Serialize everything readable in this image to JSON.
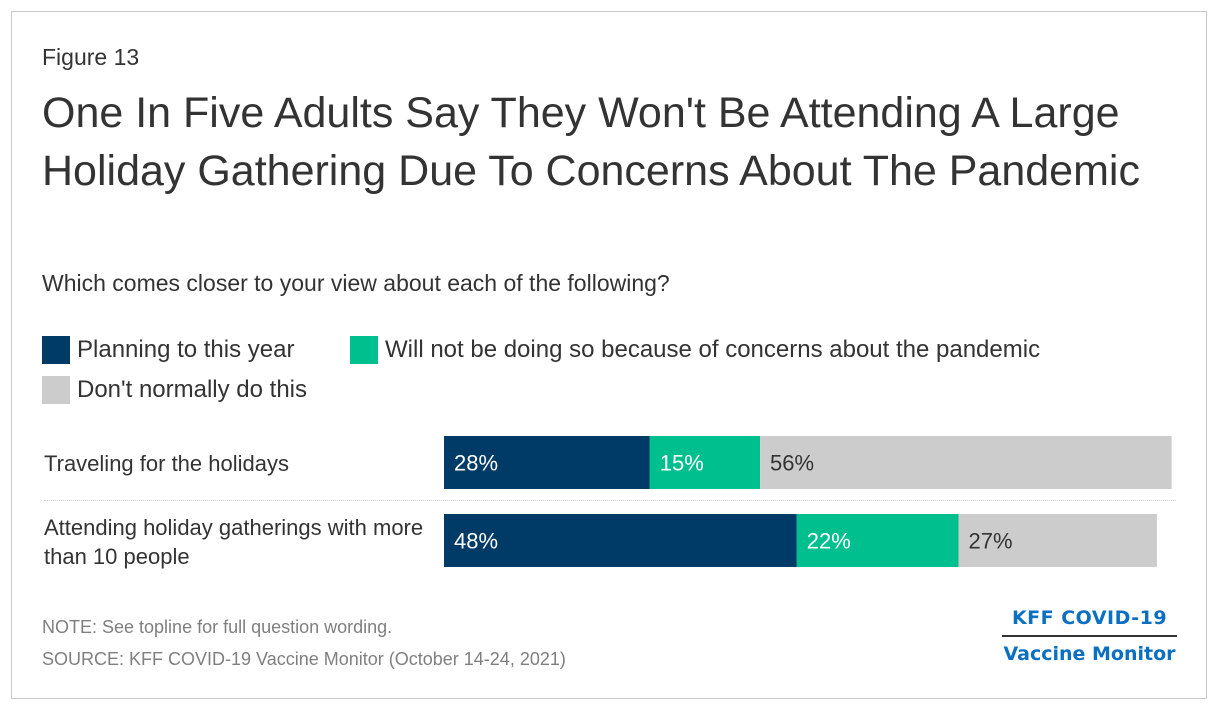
{
  "figure_label": "Figure 13",
  "title": "One In Five Adults Say They Won't Be Attending A Large Holiday Gathering Due To Concerns About The Pandemic",
  "subtitle": "Which comes closer to your view about each of the following?",
  "colors": {
    "planning": "#003a66",
    "will_not": "#00bf8f",
    "dont": "#cccccc"
  },
  "chart_data": {
    "type": "bar",
    "orientation": "horizontal",
    "stacked": true,
    "categories": [
      "Traveling for the holidays",
      "Attending holiday gatherings with more than 10 people"
    ],
    "series": [
      {
        "name": "Planning to this year",
        "values": [
          28,
          48
        ],
        "labels": [
          "28%",
          "48%"
        ]
      },
      {
        "name": "Will not be doing so because of concerns about the pandemic",
        "values": [
          15,
          22
        ],
        "labels": [
          "15%",
          "22%"
        ]
      },
      {
        "name": "Don't normally do this",
        "values": [
          56,
          27
        ],
        "labels": [
          "56%",
          "27%"
        ]
      }
    ],
    "legend_position": "top",
    "grid": false
  },
  "note": "NOTE: See topline for full question wording.",
  "source": "SOURCE: KFF COVID-19 Vaccine Monitor (October 14-24, 2021)",
  "brand": {
    "line1": "KFF COVID-19",
    "line2": "Vaccine Monitor"
  }
}
